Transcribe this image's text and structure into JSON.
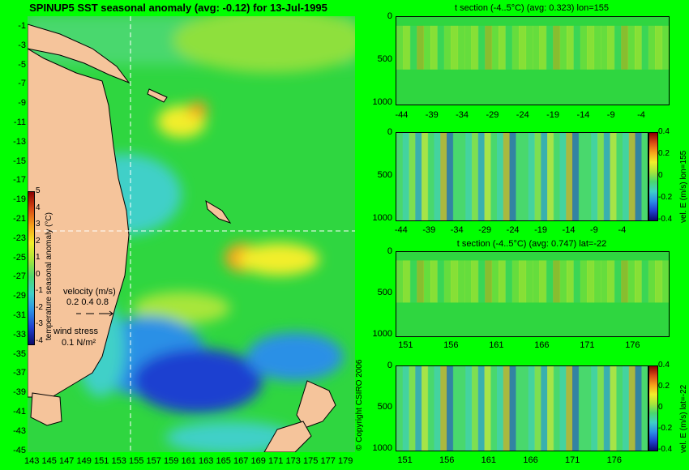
{
  "colors": {
    "background": "#00ff00",
    "land": "#f5c49b",
    "mask": "#c8a887",
    "colormap": [
      "#0b0b6b",
      "#1f3fd0",
      "#2b90e6",
      "#3fd0c8",
      "#49d86e",
      "#a8e63a",
      "#f2ee2a",
      "#f7a11a",
      "#d84a14",
      "#8a0000"
    ]
  },
  "main_map": {
    "title": "SPINUP5 SST seasonal anomaly (avg: -0.12) for 13-Jul-1995",
    "lat_ticks": [
      "-1",
      "-3",
      "-5",
      "-7",
      "-9",
      "-11",
      "-13",
      "-15",
      "-17",
      "-19",
      "-21",
      "-23",
      "-25",
      "-27",
      "-29",
      "-31",
      "-33",
      "-35",
      "-37",
      "-39",
      "-41",
      "-43",
      "-45"
    ],
    "lon_ticks": [
      "143",
      "145",
      "147",
      "149",
      "151",
      "153",
      "155",
      "157",
      "159",
      "161",
      "163",
      "165",
      "167",
      "169",
      "171",
      "173",
      "175",
      "177",
      "179"
    ],
    "colorbar_ticks": [
      "5",
      "4",
      "3",
      "2",
      "1",
      "0",
      "-1",
      "-2",
      "-3",
      "-4"
    ],
    "colorbar_label": "temperature seasonal anomaly (°C)",
    "velocity_legend": {
      "label": "velocity (m/s)",
      "scale": "0.2 0.4 0.8"
    },
    "wind_legend": {
      "label": "wind stress",
      "scale": "0.1 N/m²"
    },
    "copyright": "© Copyright CSIRO 2006"
  },
  "chart_data": [
    {
      "type": "heatmap",
      "title": "t section (-4..5°C) (avg: 0.323) lon=155",
      "x_ticks": [
        "-44",
        "-39",
        "-34",
        "-29",
        "-24",
        "-19",
        "-14",
        "-9",
        "-4"
      ],
      "y_ticks": [
        "0",
        "500",
        "1000"
      ],
      "xlim": [
        -45,
        0
      ],
      "ylim": [
        1050,
        0
      ]
    },
    {
      "type": "heatmap",
      "title": "",
      "x_ticks": [
        "-44",
        "-39",
        "-34",
        "-29",
        "-24",
        "-19",
        "-14",
        "-9",
        "-4"
      ],
      "y_ticks": [
        "0",
        "500",
        "1000"
      ],
      "xlim": [
        -45,
        0
      ],
      "ylim": [
        1050,
        0
      ],
      "colorbar_ticks": [
        "0.4",
        "0.2",
        "0",
        "-0.2",
        "-0.4"
      ],
      "colorbar_label": "vel. E (m/s) lon=155"
    },
    {
      "type": "heatmap",
      "title": "t section (-4..5°C) (avg: 0.747) lat=-22",
      "x_ticks": [
        "151",
        "156",
        "161",
        "166",
        "171",
        "176"
      ],
      "y_ticks": [
        "0",
        "500",
        "1000"
      ],
      "xlim": [
        150,
        180
      ],
      "ylim": [
        1050,
        0
      ]
    },
    {
      "type": "heatmap",
      "title": "",
      "x_ticks": [
        "151",
        "156",
        "161",
        "166",
        "171",
        "176"
      ],
      "y_ticks": [
        "0",
        "500",
        "1000"
      ],
      "xlim": [
        150,
        180
      ],
      "ylim": [
        1050,
        0
      ],
      "colorbar_ticks": [
        "0.4",
        "0.2",
        "0",
        "-0.2",
        "-0.4"
      ],
      "colorbar_label": "vel. E (m/s) lat=-22"
    }
  ]
}
